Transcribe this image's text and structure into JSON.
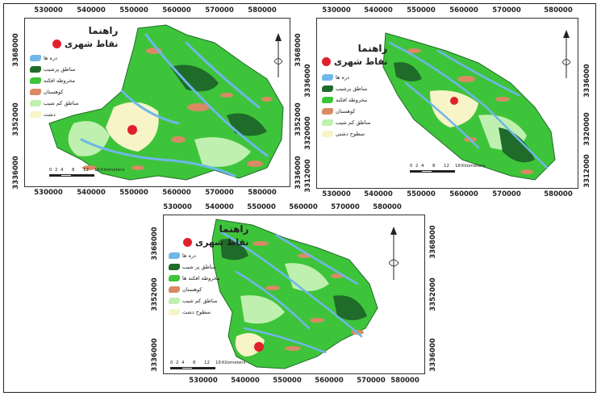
{
  "x_ticks": [
    "530000",
    "540000",
    "550000",
    "560000",
    "570000",
    "580000"
  ],
  "panels": [
    {
      "id": "p1",
      "y_ticks": [
        "3368000",
        "3352000",
        "3336000"
      ],
      "legend": {
        "title": "راهنما",
        "city_label": "نقاط شهری",
        "items": [
          "دره ها",
          "مناطق پرشیب",
          "مخروطه افکنه",
          "کوهستان",
          "مناطق کم شیب",
          "دشت"
        ]
      },
      "scale_labels": [
        "0",
        "2",
        "4",
        "8",
        "12",
        "16",
        "Kilometers"
      ]
    },
    {
      "id": "p2",
      "y_ticks": [
        "3336000",
        "3320000",
        "3312000"
      ],
      "legend": {
        "title": "راهنما",
        "city_label": "نقاط شهری",
        "items": [
          "دره ها",
          "مناطق پرشیب",
          "مخروطه افکنه",
          "کوهستان",
          "مناطق کم شیب",
          "سطوح دشتی"
        ]
      },
      "scale_labels": [
        "0",
        "2",
        "4",
        "8",
        "12",
        "16",
        "Kilometers"
      ]
    },
    {
      "id": "p3",
      "y_ticks": [
        "3368000",
        "3352000",
        "3336000"
      ],
      "legend": {
        "title": "راهنما",
        "city_label": "نقاط شهری",
        "items": [
          "دره ها",
          "مناطق پر شیب",
          "مخروطه افکنه ها",
          "کوهستان",
          "مناطق کم شیب",
          "سطوح دشت"
        ]
      },
      "scale_labels": [
        "0",
        "2",
        "4",
        "8",
        "12",
        "16",
        "Kilometers"
      ]
    }
  ],
  "colors": {
    "valley": "#6fb7e8",
    "steep": "#1f6b2a",
    "fan": "#3ec43a",
    "mountain": "#d98a64",
    "low_slope": "#bff0b0",
    "plain": "#f7f4c8",
    "city": "#e0202a"
  }
}
